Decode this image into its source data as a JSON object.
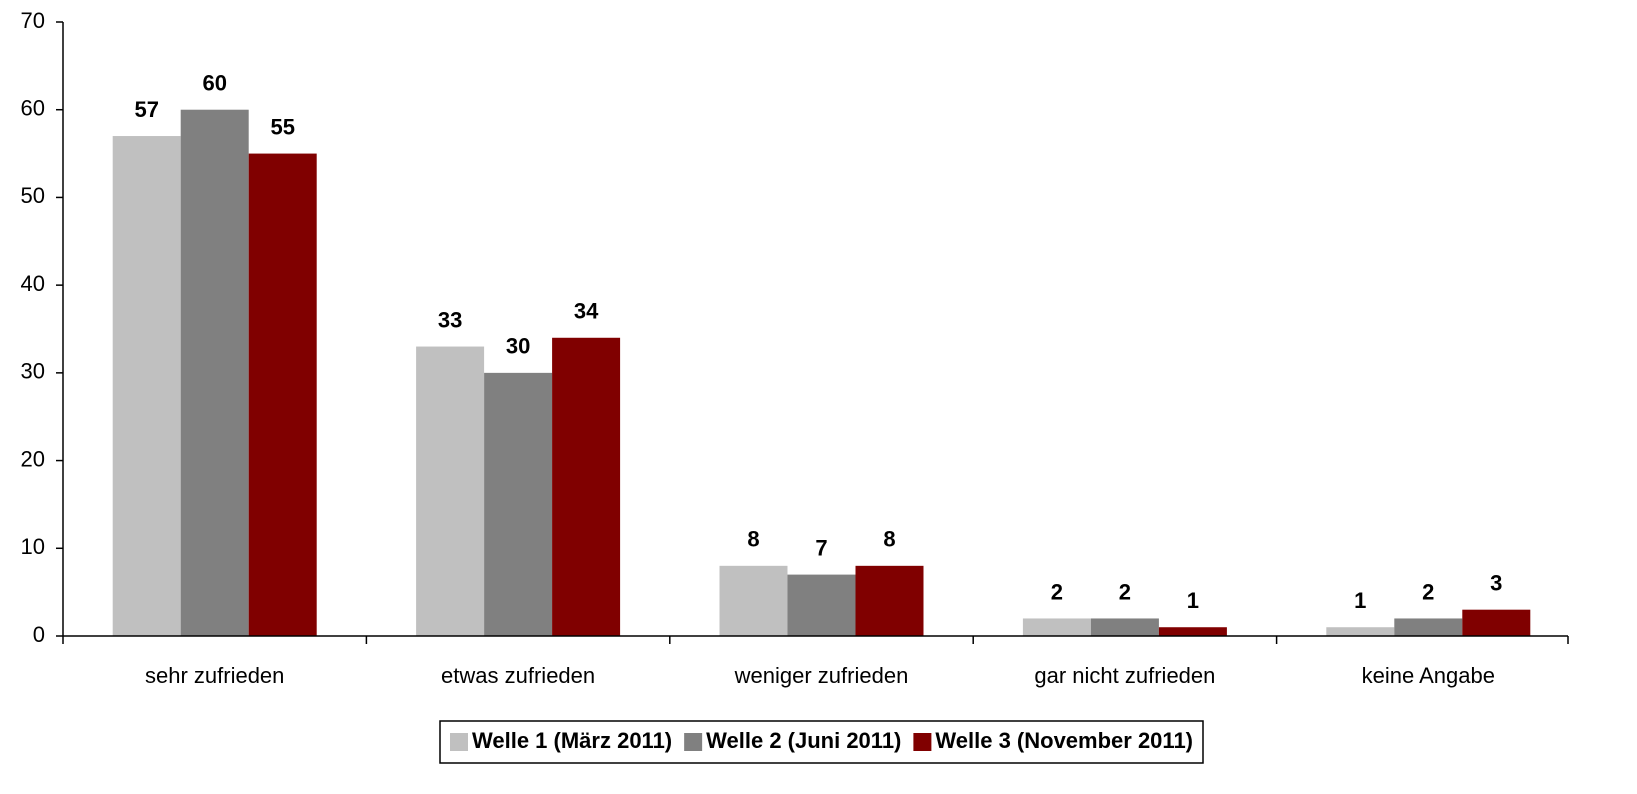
{
  "chart_data": {
    "type": "bar",
    "categories": [
      "sehr zufrieden",
      "etwas zufrieden",
      "weniger zufrieden",
      "gar nicht zufrieden",
      "keine Angabe"
    ],
    "series": [
      {
        "name": "Welle 1 (März 2011)",
        "color": "#c0c0c0",
        "values": [
          57,
          33,
          8,
          2,
          1
        ]
      },
      {
        "name": "Welle 2 (Juni 2011)",
        "color": "#808080",
        "values": [
          60,
          30,
          7,
          2,
          2
        ]
      },
      {
        "name": "Welle 3 (November 2011)",
        "color": "#800000",
        "values": [
          55,
          34,
          8,
          1,
          3
        ]
      }
    ],
    "ylim": [
      0,
      70
    ],
    "yticks": [
      0,
      10,
      20,
      30,
      40,
      50,
      60,
      70
    ],
    "grid": false,
    "legend": "bottom"
  }
}
